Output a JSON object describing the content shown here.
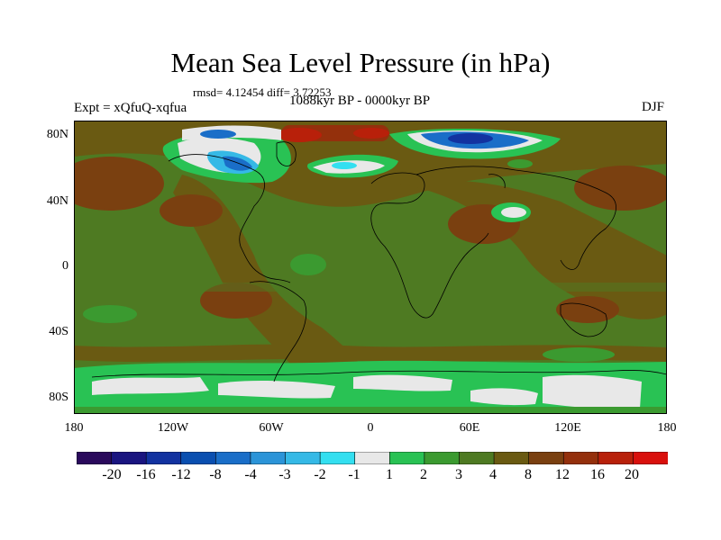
{
  "title": "Mean Sea Level Pressure (in hPa)",
  "stats": "rmsd= 4.12454 diff= 3.72253",
  "experiment": "Expt = xQfuQ-xqfua",
  "period": "1088kyr BP - 0000kyr BP",
  "season": "DJF",
  "lat_ticks": [
    "80N",
    "40N",
    "0",
    "40S",
    "80S"
  ],
  "lat_values": [
    80,
    40,
    0,
    -40,
    -80
  ],
  "lon_ticks": [
    "180",
    "120W",
    "60W",
    "0",
    "60E",
    "120E",
    "180"
  ],
  "lon_values": [
    -180,
    -120,
    -60,
    0,
    60,
    120,
    180
  ],
  "colorbar": {
    "labels": [
      "-20",
      "-16",
      "-12",
      "-8",
      "-4",
      "-3",
      "-2",
      "-1",
      "1",
      "2",
      "3",
      "4",
      "8",
      "12",
      "16",
      "20"
    ],
    "colors": [
      "#2a0a5c",
      "#1a1580",
      "#1232a0",
      "#0a4fb0",
      "#1a6ec8",
      "#2b94d8",
      "#35b9e6",
      "#33dff0",
      "#e8e8e8",
      "#29c254",
      "#3b9a30",
      "#4e7a22",
      "#6a5a12",
      "#7a4010",
      "#94300c",
      "#b8200a",
      "#d9100c"
    ]
  },
  "palette": {
    "ocean_mean": "#4e7a22",
    "coast": "#000000"
  }
}
